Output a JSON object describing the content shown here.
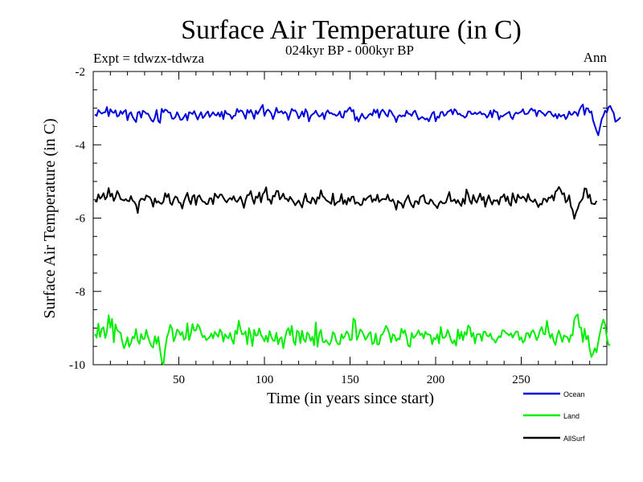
{
  "chart_data": {
    "type": "line",
    "title": "Surface Air Temperature (in C)",
    "subtitle": "024kyr BP - 000kyr BP",
    "experiment_label": "Expt = tdwzx-tdwza",
    "season_label": "Ann",
    "xlabel": "Time (in years since start)",
    "ylabel": "Surface Air Temperature (in C)",
    "xlim": [
      0,
      300
    ],
    "ylim": [
      -10,
      -2
    ],
    "x_ticks": [
      {
        "value": 50,
        "label": "50"
      },
      {
        "value": 100,
        "label": "100"
      },
      {
        "value": 150,
        "label": "150"
      },
      {
        "value": 200,
        "label": "200"
      },
      {
        "value": 250,
        "label": "250"
      }
    ],
    "y_ticks": [
      {
        "value": -2,
        "label": "-2"
      },
      {
        "value": -4,
        "label": "-4"
      },
      {
        "value": -6,
        "label": "-6"
      },
      {
        "value": -8,
        "label": "-8"
      },
      {
        "value": -10,
        "label": "-10"
      }
    ],
    "legend_position": "bottom-right",
    "x_start": 1,
    "x_step": 1,
    "series": [
      {
        "name": "Ocean",
        "color": "#0000dd",
        "values": [
          -3.17,
          -3.21,
          -3.05,
          -3.11,
          -3.15,
          -3.12,
          -3.11,
          -2.97,
          -3.22,
          -3.03,
          -3.1,
          -3.13,
          -3.06,
          -3.23,
          -3.2,
          -3.08,
          -3.16,
          -3.09,
          -3.05,
          -3.33,
          -3.16,
          -3.11,
          -3.24,
          -3.31,
          -3.38,
          -3.12,
          -3.1,
          -3.26,
          -3.07,
          -3.1,
          -3.15,
          -3.15,
          -3.24,
          -3.33,
          -3.37,
          -3.26,
          -3.05,
          -3.35,
          -3.4,
          -3.02,
          -3.11,
          -3.04,
          -3.06,
          -3.12,
          -3.12,
          -3.28,
          -3.29,
          -3.24,
          -3.11,
          -3.21,
          -3.32,
          -3.31,
          -3.24,
          -3.16,
          -3.33,
          -3.11,
          -3.13,
          -3.16,
          -3.08,
          -3.2,
          -3.31,
          -3.2,
          -3.11,
          -3.27,
          -3.22,
          -3.14,
          -3.09,
          -3.24,
          -3.18,
          -3.11,
          -3.18,
          -3.2,
          -3.12,
          -3.23,
          -3.1,
          -3.3,
          -3.07,
          -3.15,
          -3.16,
          -3.19,
          -3.29,
          -3.21,
          -3.2,
          -3.02,
          -3.11,
          -3.06,
          -3.08,
          -3.17,
          -3.29,
          -3.05,
          -3.13,
          -3.05,
          -3.15,
          -3.29,
          -3.07,
          -3.16,
          -3.08,
          -2.99,
          -2.91,
          -3.21,
          -3.09,
          -3.04,
          -3.08,
          -3.15,
          -3.3,
          -3.16,
          -2.99,
          -3.12,
          -3.11,
          -3.08,
          -3.15,
          -3.1,
          -3.15,
          -3.32,
          -3.16,
          -3.02,
          -3.07,
          -3.06,
          -3.14,
          -3.28,
          -3.21,
          -3.09,
          -3.23,
          -3.03,
          -3.12,
          -3.36,
          -3.22,
          -3.17,
          -3.14,
          -3.07,
          -3.17,
          -3.23,
          -3.2,
          -3.13,
          -3.3,
          -3.12,
          -3.06,
          -3.14,
          -3.13,
          -3.17,
          -3.17,
          -3.21,
          -3.18,
          -3.09,
          -3.24,
          -3.26,
          -3.08,
          -3.1,
          -3.03,
          -2.98,
          -3.09,
          -3.05,
          -3.33,
          -3.24,
          -3.37,
          -3.25,
          -3.15,
          -3.24,
          -3.29,
          -3.25,
          -3.18,
          -3.15,
          -3.2,
          -3.04,
          -3.13,
          -3.04,
          -3.26,
          -3.1,
          -3.04,
          -3.1,
          -3.18,
          -3.23,
          -3.05,
          -3.09,
          -3.18,
          -3.24,
          -3.38,
          -3.23,
          -3.19,
          -3.23,
          -3.2,
          -3.22,
          -3.07,
          -3.15,
          -3.16,
          -3.21,
          -3.11,
          -3.07,
          -3.19,
          -3.31,
          -3.28,
          -3.24,
          -3.27,
          -3.31,
          -3.28,
          -3.36,
          -3.25,
          -3.14,
          -3.1,
          -3.36,
          -3.23,
          -3.26,
          -3.11,
          -3.1,
          -3.21,
          -3.18,
          -3.1,
          -3.08,
          -3.04,
          -3.17,
          -3.03,
          -3.07,
          -3.17,
          -3.15,
          -3.2,
          -3.21,
          -3.26,
          -3.22,
          -3.09,
          -3.09,
          -3.16,
          -3.16,
          -3.12,
          -3.16,
          -3.14,
          -3.1,
          -3.17,
          -3.15,
          -3.18,
          -3.26,
          -3.19,
          -3.07,
          -3.25,
          -3.05,
          -3.1,
          -3.11,
          -3.31,
          -3.21,
          -3.23,
          -3.19,
          -3.16,
          -3.13,
          -3.1,
          -3.24,
          -3.3,
          -3.17,
          -3.12,
          -3.15,
          -3.12,
          -3.1,
          -3.03,
          -3.16,
          -3.16,
          -3.14,
          -3.06,
          -3.01,
          -3.07,
          -3.05,
          -3.22,
          -3.08,
          -3.07,
          -3.12,
          -3.15,
          -3.21,
          -3.14,
          -3.09,
          -3.1,
          -3.18,
          -3.23,
          -3.16,
          -3.28,
          -3.16,
          -3.23,
          -3.2,
          -3.18,
          -3.3,
          -3.23,
          -3.09,
          -3.18,
          -3.17,
          -3.1,
          -3.12,
          -3.21,
          -3.05,
          -2.96,
          -2.9,
          -3.18,
          -3.0,
          -3.01,
          -3.12,
          -3.09,
          -3.34,
          -3.48,
          -3.62,
          -3.74,
          -3.52,
          -3.3,
          -3.2,
          -3.07,
          -3.12,
          -2.97,
          -2.94,
          -3.05,
          -3.13,
          -3.37,
          -3.34,
          -3.3,
          -3.25
        ]
      },
      {
        "name": "Land",
        "color": "#00ee00",
        "values": [
          -9.16,
          -9.26,
          -8.88,
          -9.24,
          -9.02,
          -8.98,
          -9.27,
          -9.1,
          -8.65,
          -8.99,
          -8.75,
          -9.39,
          -8.9,
          -9.06,
          -9.1,
          -9.13,
          -9.38,
          -9.55,
          -9.43,
          -9.25,
          -9.51,
          -9.41,
          -9.24,
          -9.28,
          -9.03,
          -9.34,
          -9.43,
          -9.16,
          -9.3,
          -9.29,
          -9.05,
          -9.24,
          -9.38,
          -9.49,
          -9.53,
          -9.22,
          -9.43,
          -9.24,
          -9.59,
          -9.9,
          -10.0,
          -9.57,
          -9.26,
          -9.12,
          -8.91,
          -9.01,
          -9.36,
          -9.24,
          -9.04,
          -9.09,
          -9.19,
          -9.11,
          -9.32,
          -9.27,
          -8.87,
          -9.33,
          -9.16,
          -8.89,
          -9.07,
          -9.06,
          -8.9,
          -8.97,
          -9.12,
          -9.25,
          -9.21,
          -9.33,
          -9.29,
          -9.25,
          -9.15,
          -9.28,
          -9.1,
          -9.17,
          -9.24,
          -9.04,
          -9.11,
          -9.37,
          -9.17,
          -9.24,
          -9.28,
          -9.13,
          -9.32,
          -9.43,
          -9.07,
          -9.16,
          -8.8,
          -9.03,
          -9.17,
          -9.16,
          -9.09,
          -9.44,
          -9.0,
          -9.2,
          -9.49,
          -9.05,
          -9.21,
          -9.19,
          -9.01,
          -9.18,
          -9.26,
          -9.36,
          -9.21,
          -9.38,
          -9.08,
          -9.23,
          -9.34,
          -9.35,
          -9.13,
          -9.44,
          -9.29,
          -9.25,
          -9.55,
          -9.28,
          -9.08,
          -9.0,
          -9.19,
          -8.94,
          -9.36,
          -9.46,
          -9.07,
          -9.11,
          -9.41,
          -9.07,
          -9.31,
          -9.38,
          -9.12,
          -9.18,
          -9.35,
          -9.24,
          -9.47,
          -8.85,
          -9.51,
          -9.16,
          -9.05,
          -9.37,
          -9.39,
          -9.33,
          -9.4,
          -9.46,
          -9.35,
          -9.11,
          -9.17,
          -9.36,
          -9.44,
          -9.44,
          -9.17,
          -9.28,
          -9.22,
          -9.09,
          -9.16,
          -9.33,
          -9.31,
          -8.74,
          -8.8,
          -9.32,
          -9.2,
          -9.04,
          -9.09,
          -9.19,
          -9.32,
          -9.25,
          -9.15,
          -9.11,
          -9.44,
          -9.4,
          -9.15,
          -9.45,
          -9.44,
          -9.2,
          -9.17,
          -9.07,
          -8.94,
          -9.02,
          -9.16,
          -9.39,
          -9.17,
          -9.2,
          -9.35,
          -9.28,
          -9.31,
          -9.02,
          -9.14,
          -9.06,
          -9.24,
          -9.48,
          -9.51,
          -9.13,
          -9.27,
          -9.23,
          -9.16,
          -9.06,
          -9.19,
          -9.15,
          -9.28,
          -9.1,
          -9.17,
          -9.17,
          -9.2,
          -9.44,
          -9.27,
          -9.31,
          -9.17,
          -9.42,
          -8.97,
          -9.26,
          -9.27,
          -9.22,
          -9.05,
          -9.17,
          -9.34,
          -9.42,
          -9.33,
          -9.48,
          -9.04,
          -9.29,
          -9.1,
          -9.33,
          -9.11,
          -9.19,
          -8.93,
          -8.98,
          -9.24,
          -9.13,
          -9.42,
          -9.18,
          -9.16,
          -9.17,
          -9.35,
          -9.1,
          -9.1,
          -9.21,
          -9.23,
          -9.15,
          -9.3,
          -9.32,
          -9.4,
          -9.3,
          -9.22,
          -9.25,
          -9.06,
          -9.07,
          -9.13,
          -9.16,
          -9.2,
          -9.14,
          -9.26,
          -9.17,
          -9.09,
          -9.1,
          -9.32,
          -9.25,
          -9.4,
          -9.34,
          -9.14,
          -9.14,
          -9.26,
          -9.1,
          -9.06,
          -9.17,
          -9.33,
          -9.23,
          -9.06,
          -8.97,
          -9.16,
          -9.17,
          -8.8,
          -9.09,
          -9.27,
          -9.16,
          -9.36,
          -9.46,
          -9.21,
          -9.07,
          -9.22,
          -9.38,
          -9.2,
          -9.23,
          -9.25,
          -9.38,
          -9.19,
          -9.2,
          -8.76,
          -8.67,
          -8.63,
          -8.98,
          -8.99,
          -9.38,
          -9.02,
          -9.31,
          -9.21,
          -9.58,
          -9.79,
          -9.69,
          -9.55,
          -9.66,
          -9.38,
          -9.13,
          -8.92,
          -8.77,
          -8.9,
          -9.26,
          -9.46,
          -9.46
        ]
      },
      {
        "name": "AllSurf",
        "color": "#000000",
        "values": [
          -5.53,
          -5.55,
          -5.35,
          -5.47,
          -5.42,
          -5.32,
          -5.49,
          -5.42,
          -5.18,
          -5.41,
          -5.33,
          -5.53,
          -5.43,
          -5.26,
          -5.35,
          -5.48,
          -5.5,
          -5.52,
          -5.48,
          -5.53,
          -5.54,
          -5.4,
          -5.52,
          -5.56,
          -5.64,
          -5.86,
          -5.54,
          -5.47,
          -5.48,
          -5.51,
          -5.38,
          -5.41,
          -5.43,
          -5.52,
          -5.69,
          -5.46,
          -5.58,
          -5.54,
          -5.59,
          -5.61,
          -5.55,
          -5.32,
          -5.43,
          -5.34,
          -5.59,
          -5.64,
          -5.5,
          -5.41,
          -5.44,
          -5.57,
          -5.59,
          -5.74,
          -5.54,
          -5.42,
          -5.31,
          -5.51,
          -5.62,
          -5.41,
          -5.37,
          -5.64,
          -5.42,
          -5.38,
          -5.48,
          -5.55,
          -5.56,
          -5.62,
          -5.61,
          -5.46,
          -5.46,
          -5.62,
          -5.33,
          -5.4,
          -5.45,
          -5.36,
          -5.36,
          -5.44,
          -5.52,
          -5.57,
          -5.49,
          -5.45,
          -5.5,
          -5.4,
          -5.52,
          -5.56,
          -5.49,
          -5.41,
          -5.55,
          -5.72,
          -5.51,
          -5.37,
          -5.37,
          -5.26,
          -5.47,
          -5.61,
          -5.41,
          -5.45,
          -5.3,
          -5.57,
          -5.35,
          -5.29,
          -5.16,
          -5.5,
          -5.49,
          -5.61,
          -5.39,
          -5.41,
          -5.26,
          -5.26,
          -5.49,
          -5.43,
          -5.33,
          -5.47,
          -5.47,
          -5.54,
          -5.42,
          -5.49,
          -5.56,
          -5.65,
          -5.58,
          -5.52,
          -5.62,
          -5.71,
          -5.5,
          -5.33,
          -5.54,
          -5.56,
          -5.6,
          -5.44,
          -5.49,
          -5.61,
          -5.43,
          -5.47,
          -5.24,
          -5.4,
          -5.44,
          -5.51,
          -5.54,
          -5.57,
          -5.61,
          -5.33,
          -5.65,
          -5.59,
          -5.55,
          -5.54,
          -5.34,
          -5.61,
          -5.51,
          -5.63,
          -5.45,
          -5.54,
          -5.42,
          -5.41,
          -5.61,
          -5.57,
          -5.59,
          -5.65,
          -5.63,
          -5.46,
          -5.51,
          -5.45,
          -5.41,
          -5.38,
          -5.56,
          -5.48,
          -5.52,
          -5.36,
          -5.56,
          -5.51,
          -5.48,
          -5.48,
          -5.49,
          -5.36,
          -5.51,
          -5.54,
          -5.49,
          -5.6,
          -5.77,
          -5.53,
          -5.58,
          -5.6,
          -5.72,
          -5.56,
          -5.47,
          -5.38,
          -5.55,
          -5.65,
          -5.71,
          -5.54,
          -5.54,
          -5.62,
          -5.43,
          -5.4,
          -5.37,
          -5.57,
          -5.6,
          -5.61,
          -5.49,
          -5.53,
          -5.62,
          -5.66,
          -5.73,
          -5.6,
          -5.54,
          -5.59,
          -5.6,
          -5.57,
          -5.43,
          -5.29,
          -5.54,
          -5.53,
          -5.49,
          -5.59,
          -5.51,
          -5.6,
          -5.67,
          -5.47,
          -5.61,
          -5.22,
          -5.35,
          -5.53,
          -5.61,
          -5.37,
          -5.51,
          -5.58,
          -5.45,
          -5.33,
          -5.51,
          -5.42,
          -5.69,
          -5.52,
          -5.38,
          -5.52,
          -5.63,
          -5.51,
          -5.53,
          -5.51,
          -5.63,
          -5.43,
          -5.42,
          -5.35,
          -5.54,
          -5.41,
          -5.6,
          -5.66,
          -5.32,
          -5.48,
          -5.58,
          -5.36,
          -5.44,
          -5.46,
          -5.41,
          -5.46,
          -5.55,
          -5.34,
          -5.49,
          -5.53,
          -5.56,
          -5.49,
          -5.59,
          -5.7,
          -5.61,
          -5.63,
          -5.47,
          -5.48,
          -5.56,
          -5.44,
          -5.45,
          -5.38,
          -5.52,
          -5.28,
          -5.24,
          -5.15,
          -5.23,
          -5.35,
          -5.32,
          -5.57,
          -5.52,
          -5.38,
          -5.68,
          -5.78,
          -6.02,
          -5.85,
          -5.74,
          -5.59,
          -5.53,
          -5.46,
          -5.19,
          -5.2,
          -5.45,
          -5.36,
          -5.6,
          -5.61,
          -5.62,
          -5.53
        ]
      }
    ]
  }
}
